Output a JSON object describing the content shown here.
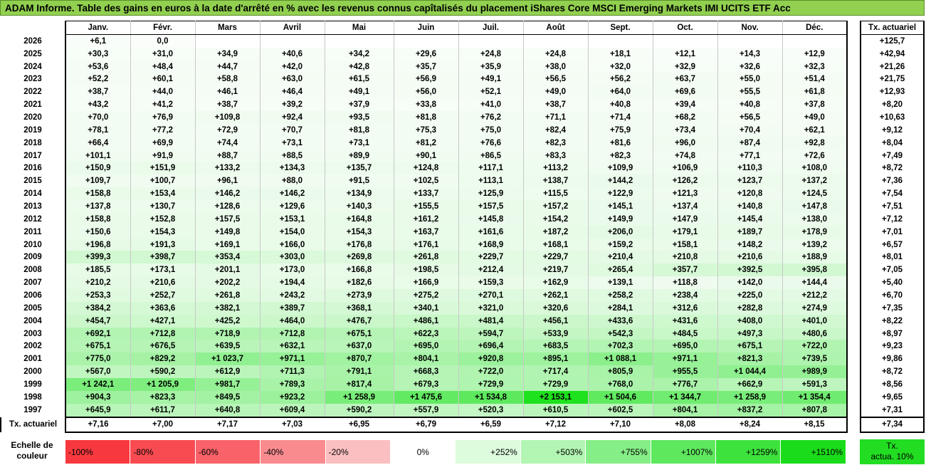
{
  "title": "ADAM Informe. Table des gains en euros à la date d'arrêté en % avec les revenus connus capîtalisés du placement iShares Core MSCI Emerging Markets IMI UCITS ETF Acc",
  "months": [
    "Janv.",
    "Févr.",
    "Mars",
    "Avril",
    "Mai",
    "Juin",
    "Juil.",
    "Août",
    "Sept.",
    "Oct.",
    "Nov.",
    "Déc."
  ],
  "side_header": "Tx. actuariel",
  "rows": [
    {
      "year": "2026",
      "vals": [
        "+6,1",
        "0,0",
        "",
        "",
        "",
        "",
        "",
        "",
        "",
        "",
        "",
        ""
      ],
      "tx": "+125,7"
    },
    {
      "year": "2025",
      "vals": [
        "+30,3",
        "+31,0",
        "+34,9",
        "+40,6",
        "+34,2",
        "+29,6",
        "+24,8",
        "+24,8",
        "+18,1",
        "+12,1",
        "+14,3",
        "+12,9"
      ],
      "tx": "+42,94"
    },
    {
      "year": "2024",
      "vals": [
        "+53,6",
        "+48,4",
        "+44,7",
        "+42,0",
        "+42,8",
        "+35,7",
        "+35,9",
        "+38,0",
        "+32,0",
        "+32,9",
        "+32,6",
        "+32,3"
      ],
      "tx": "+21,26"
    },
    {
      "year": "2023",
      "vals": [
        "+52,2",
        "+60,1",
        "+58,8",
        "+63,0",
        "+61,5",
        "+56,9",
        "+49,1",
        "+56,5",
        "+56,2",
        "+63,7",
        "+55,0",
        "+51,4"
      ],
      "tx": "+21,75"
    },
    {
      "year": "2022",
      "vals": [
        "+38,7",
        "+44,0",
        "+46,1",
        "+46,4",
        "+49,1",
        "+56,0",
        "+52,1",
        "+49,0",
        "+64,0",
        "+69,6",
        "+55,5",
        "+61,8"
      ],
      "tx": "+12,93"
    },
    {
      "year": "2021",
      "vals": [
        "+43,2",
        "+41,2",
        "+38,7",
        "+39,2",
        "+37,9",
        "+33,8",
        "+41,0",
        "+38,7",
        "+40,8",
        "+39,4",
        "+40,8",
        "+37,8"
      ],
      "tx": "+8,20"
    },
    {
      "year": "2020",
      "vals": [
        "+70,0",
        "+76,9",
        "+109,8",
        "+92,4",
        "+93,5",
        "+81,8",
        "+76,2",
        "+71,1",
        "+71,4",
        "+68,2",
        "+56,5",
        "+49,0"
      ],
      "tx": "+10,63"
    },
    {
      "year": "2019",
      "vals": [
        "+78,1",
        "+77,2",
        "+72,9",
        "+70,7",
        "+81,8",
        "+75,3",
        "+75,0",
        "+82,4",
        "+75,9",
        "+73,4",
        "+70,4",
        "+62,1"
      ],
      "tx": "+9,12"
    },
    {
      "year": "2018",
      "vals": [
        "+66,4",
        "+69,9",
        "+74,4",
        "+73,1",
        "+73,1",
        "+81,2",
        "+76,6",
        "+82,3",
        "+81,6",
        "+96,0",
        "+87,4",
        "+92,8"
      ],
      "tx": "+8,04"
    },
    {
      "year": "2017",
      "vals": [
        "+101,1",
        "+91,9",
        "+88,7",
        "+88,5",
        "+89,9",
        "+90,1",
        "+86,5",
        "+83,3",
        "+82,3",
        "+74,8",
        "+77,1",
        "+72,6"
      ],
      "tx": "+7,49"
    },
    {
      "year": "2016",
      "vals": [
        "+150,9",
        "+151,9",
        "+133,2",
        "+134,3",
        "+135,7",
        "+124,8",
        "+117,1",
        "+113,2",
        "+109,9",
        "+106,9",
        "+110,3",
        "+108,0"
      ],
      "tx": "+8,72"
    },
    {
      "year": "2015",
      "vals": [
        "+109,7",
        "+100,7",
        "+96,1",
        "+88,0",
        "+91,5",
        "+102,5",
        "+113,1",
        "+138,7",
        "+144,2",
        "+126,2",
        "+123,7",
        "+137,2"
      ],
      "tx": "+7,36"
    },
    {
      "year": "2014",
      "vals": [
        "+158,8",
        "+153,4",
        "+146,2",
        "+146,2",
        "+134,9",
        "+133,7",
        "+125,9",
        "+115,5",
        "+122,9",
        "+121,3",
        "+120,8",
        "+124,5"
      ],
      "tx": "+7,54"
    },
    {
      "year": "2013",
      "vals": [
        "+137,8",
        "+130,7",
        "+128,6",
        "+129,6",
        "+140,3",
        "+155,5",
        "+157,5",
        "+157,2",
        "+145,1",
        "+137,4",
        "+140,8",
        "+147,8"
      ],
      "tx": "+7,51"
    },
    {
      "year": "2012",
      "vals": [
        "+158,8",
        "+152,8",
        "+157,5",
        "+153,1",
        "+164,8",
        "+161,2",
        "+145,8",
        "+154,2",
        "+149,9",
        "+147,9",
        "+145,4",
        "+138,0"
      ],
      "tx": "+7,12"
    },
    {
      "year": "2011",
      "vals": [
        "+150,6",
        "+154,3",
        "+149,8",
        "+154,0",
        "+154,3",
        "+163,7",
        "+161,6",
        "+187,2",
        "+206,0",
        "+179,1",
        "+189,7",
        "+178,9"
      ],
      "tx": "+7,01"
    },
    {
      "year": "2010",
      "vals": [
        "+196,8",
        "+191,3",
        "+169,1",
        "+166,0",
        "+176,8",
        "+176,1",
        "+168,9",
        "+168,1",
        "+159,2",
        "+158,1",
        "+148,2",
        "+139,2"
      ],
      "tx": "+6,57"
    },
    {
      "year": "2009",
      "vals": [
        "+399,3",
        "+398,7",
        "+353,4",
        "+303,0",
        "+269,8",
        "+261,8",
        "+229,7",
        "+229,7",
        "+210,4",
        "+210,8",
        "+210,6",
        "+188,9"
      ],
      "tx": "+8,01"
    },
    {
      "year": "2008",
      "vals": [
        "+185,5",
        "+173,1",
        "+201,1",
        "+173,0",
        "+166,8",
        "+198,5",
        "+212,4",
        "+219,7",
        "+265,4",
        "+357,7",
        "+392,5",
        "+395,8"
      ],
      "tx": "+7,05"
    },
    {
      "year": "2007",
      "vals": [
        "+210,2",
        "+210,6",
        "+202,2",
        "+194,4",
        "+182,6",
        "+166,9",
        "+159,3",
        "+162,9",
        "+139,1",
        "+118,8",
        "+142,0",
        "+144,4"
      ],
      "tx": "+5,40"
    },
    {
      "year": "2006",
      "vals": [
        "+253,3",
        "+252,7",
        "+261,8",
        "+243,2",
        "+273,9",
        "+275,2",
        "+270,1",
        "+262,1",
        "+258,2",
        "+238,4",
        "+225,0",
        "+212,2"
      ],
      "tx": "+6,70"
    },
    {
      "year": "2005",
      "vals": [
        "+384,2",
        "+363,6",
        "+382,1",
        "+389,7",
        "+368,1",
        "+340,1",
        "+321,0",
        "+320,6",
        "+284,1",
        "+312,6",
        "+282,8",
        "+274,9"
      ],
      "tx": "+7,35"
    },
    {
      "year": "2004",
      "vals": [
        "+454,7",
        "+427,1",
        "+425,2",
        "+464,0",
        "+476,7",
        "+486,1",
        "+481,4",
        "+456,1",
        "+433,6",
        "+431,6",
        "+408,0",
        "+401,0"
      ],
      "tx": "+8,22"
    },
    {
      "year": "2003",
      "vals": [
        "+692,1",
        "+712,8",
        "+718,9",
        "+712,8",
        "+675,1",
        "+622,3",
        "+594,7",
        "+533,9",
        "+542,3",
        "+484,5",
        "+497,3",
        "+480,6"
      ],
      "tx": "+8,97"
    },
    {
      "year": "2002",
      "vals": [
        "+675,1",
        "+676,5",
        "+639,5",
        "+632,1",
        "+637,0",
        "+695,0",
        "+696,4",
        "+683,5",
        "+702,3",
        "+695,0",
        "+675,1",
        "+722,0"
      ],
      "tx": "+9,23"
    },
    {
      "year": "2001",
      "vals": [
        "+775,0",
        "+829,2",
        "+1 023,7",
        "+971,1",
        "+870,7",
        "+804,1",
        "+920,8",
        "+895,1",
        "+1 088,1",
        "+971,1",
        "+821,3",
        "+739,5"
      ],
      "tx": "+9,86"
    },
    {
      "year": "2000",
      "vals": [
        "+567,0",
        "+590,2",
        "+612,9",
        "+711,3",
        "+791,1",
        "+668,3",
        "+722,0",
        "+717,4",
        "+805,9",
        "+955,5",
        "+1 044,4",
        "+989,9"
      ],
      "tx": "+8,72"
    },
    {
      "year": "1999",
      "vals": [
        "+1 242,1",
        "+1 205,9",
        "+981,7",
        "+789,3",
        "+817,4",
        "+679,3",
        "+729,9",
        "+729,9",
        "+768,0",
        "+776,7",
        "+662,9",
        "+591,3"
      ],
      "tx": "+8,56"
    },
    {
      "year": "1998",
      "vals": [
        "+904,3",
        "+823,3",
        "+849,5",
        "+923,2",
        "+1 258,9",
        "+1 475,6",
        "+1 534,8",
        "+2 153,1",
        "+1 504,6",
        "+1 344,7",
        "+1 258,9",
        "+1 354,4"
      ],
      "tx": "+9,65"
    },
    {
      "year": "1997",
      "vals": [
        "+645,9",
        "+611,7",
        "+640,8",
        "+609,4",
        "+590,2",
        "+557,9",
        "+520,3",
        "+610,5",
        "+602,5",
        "+804,1",
        "+837,2",
        "+807,8"
      ],
      "tx": "+7,31"
    }
  ],
  "footer": {
    "label": "Tx. actuariel",
    "vals": [
      "+7,16",
      "+7,00",
      "+7,17",
      "+7,03",
      "+6,95",
      "+6,79",
      "+6,59",
      "+7,12",
      "+7,10",
      "+8,08",
      "+8,24",
      "+8,15"
    ],
    "tx": "+7,34"
  },
  "legend": {
    "label_line1": "Echelle de",
    "label_line2": "couleur",
    "items": [
      {
        "text": "-100%",
        "color": "#f8383f",
        "kind": "neg"
      },
      {
        "text": "-80%",
        "color": "#f84b51",
        "kind": "neg"
      },
      {
        "text": "-60%",
        "color": "#f86268",
        "kind": "neg"
      },
      {
        "text": "-40%",
        "color": "#f98b8f",
        "kind": "neg"
      },
      {
        "text": "-20%",
        "color": "#fbbfc1",
        "kind": "neg"
      },
      {
        "text": "0%",
        "color": "#ffffff",
        "kind": "zero"
      },
      {
        "text": "+252%",
        "color": "#ddfbdd",
        "kind": "pos"
      },
      {
        "text": "+503%",
        "color": "#b3f5b3",
        "kind": "pos"
      },
      {
        "text": "+755%",
        "color": "#86ee86",
        "kind": "pos"
      },
      {
        "text": "+1007%",
        "color": "#5ee85e",
        "kind": "pos"
      },
      {
        "text": "+1259%",
        "color": "#3de23d",
        "kind": "pos"
      },
      {
        "text": "+1510%",
        "color": "#1adc1a",
        "kind": "pos"
      }
    ],
    "right_line1": "Tx.",
    "right_line2": "actua. 10%"
  },
  "colors": {
    "title_bg": "#92d050",
    "scale_max_green": "#1adc1a"
  }
}
